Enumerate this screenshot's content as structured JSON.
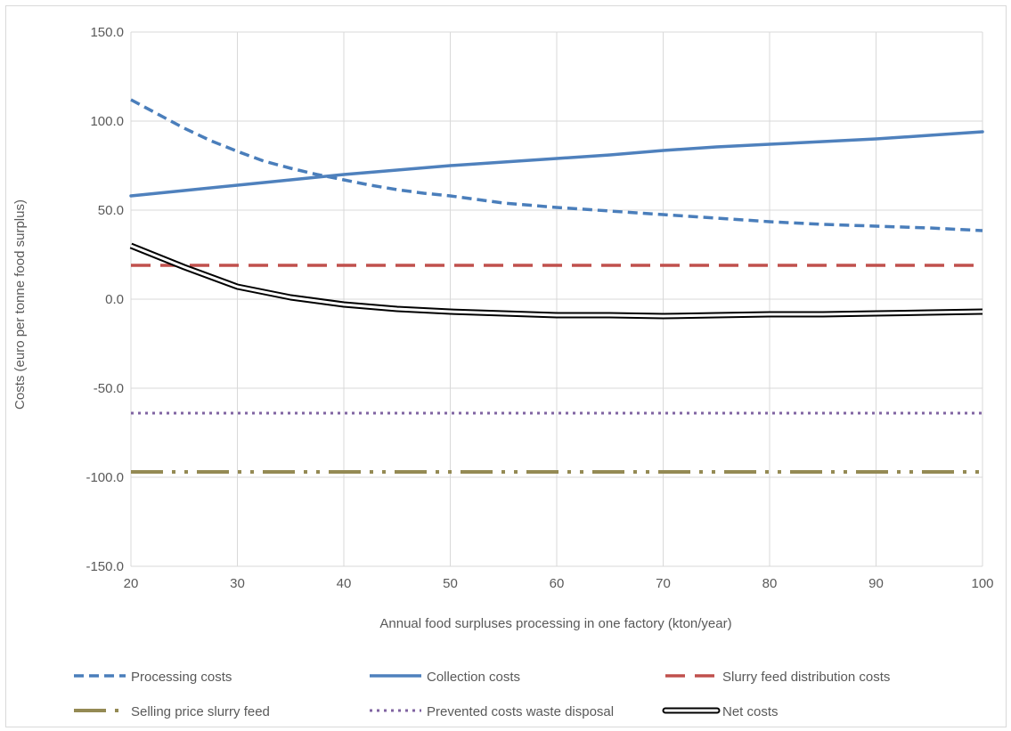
{
  "chart_data": {
    "type": "line",
    "title": "",
    "xlabel": "Annual food surpluses processing in one factory (kton/year)",
    "ylabel": "Costs (euro per tonne food surplus)",
    "xlim": [
      20,
      100
    ],
    "ylim": [
      -150,
      150
    ],
    "x_ticks": [
      "20",
      "30",
      "40",
      "50",
      "60",
      "70",
      "80",
      "90",
      "100"
    ],
    "y_ticks": [
      "150.0",
      "100.0",
      "50.0",
      "0.0",
      "-50.0",
      "-100.0",
      "-150.0"
    ],
    "grid": true,
    "legend_position": "bottom",
    "series": [
      {
        "name": "Processing costs",
        "color": "#4a7ebb",
        "style": "dashed",
        "x": [
          20,
          22.5,
          25,
          27.5,
          30,
          32.5,
          35,
          37.5,
          40,
          42.5,
          45,
          47.5,
          50,
          55,
          60,
          65,
          70,
          75,
          80,
          85,
          90,
          95,
          100
        ],
        "y": [
          112,
          104,
          96,
          89,
          83,
          77.5,
          73.5,
          70,
          67,
          64,
          61.5,
          59.5,
          58,
          54,
          51.5,
          49.5,
          47.5,
          45.5,
          43.5,
          42,
          41,
          40,
          38.5
        ]
      },
      {
        "name": "Collection costs",
        "color": "#4f81bd",
        "style": "solid",
        "x": [
          20,
          25,
          30,
          35,
          40,
          45,
          50,
          55,
          60,
          65,
          70,
          75,
          80,
          85,
          90,
          95,
          100
        ],
        "y": [
          58,
          61,
          64,
          67,
          70,
          72.5,
          75,
          77,
          79,
          81,
          83.5,
          85.5,
          87,
          88.5,
          90,
          92,
          94
        ]
      },
      {
        "name": "Slurry feed distribution costs",
        "color": "#c0504d",
        "style": "longdash",
        "x": [
          20,
          100
        ],
        "y": [
          19,
          19
        ]
      },
      {
        "name": "Selling price slurry feed",
        "color": "#948a54",
        "style": "dashdotdot",
        "x": [
          20,
          100
        ],
        "y": [
          -97,
          -97
        ]
      },
      {
        "name": "Prevented costs waste disposal",
        "color": "#8064a2",
        "style": "dotted",
        "x": [
          20,
          100
        ],
        "y": [
          -64,
          -64
        ]
      },
      {
        "name": "Net costs",
        "color": "#000000",
        "style": "double",
        "x": [
          20,
          25,
          30,
          35,
          40,
          45,
          50,
          55,
          60,
          65,
          70,
          75,
          80,
          85,
          90,
          95,
          100
        ],
        "y": [
          30,
          18,
          7,
          1,
          -3,
          -5.5,
          -7,
          -8,
          -9,
          -9,
          -9.5,
          -9,
          -8.5,
          -8.5,
          -8,
          -7.5,
          -7
        ]
      }
    ]
  }
}
